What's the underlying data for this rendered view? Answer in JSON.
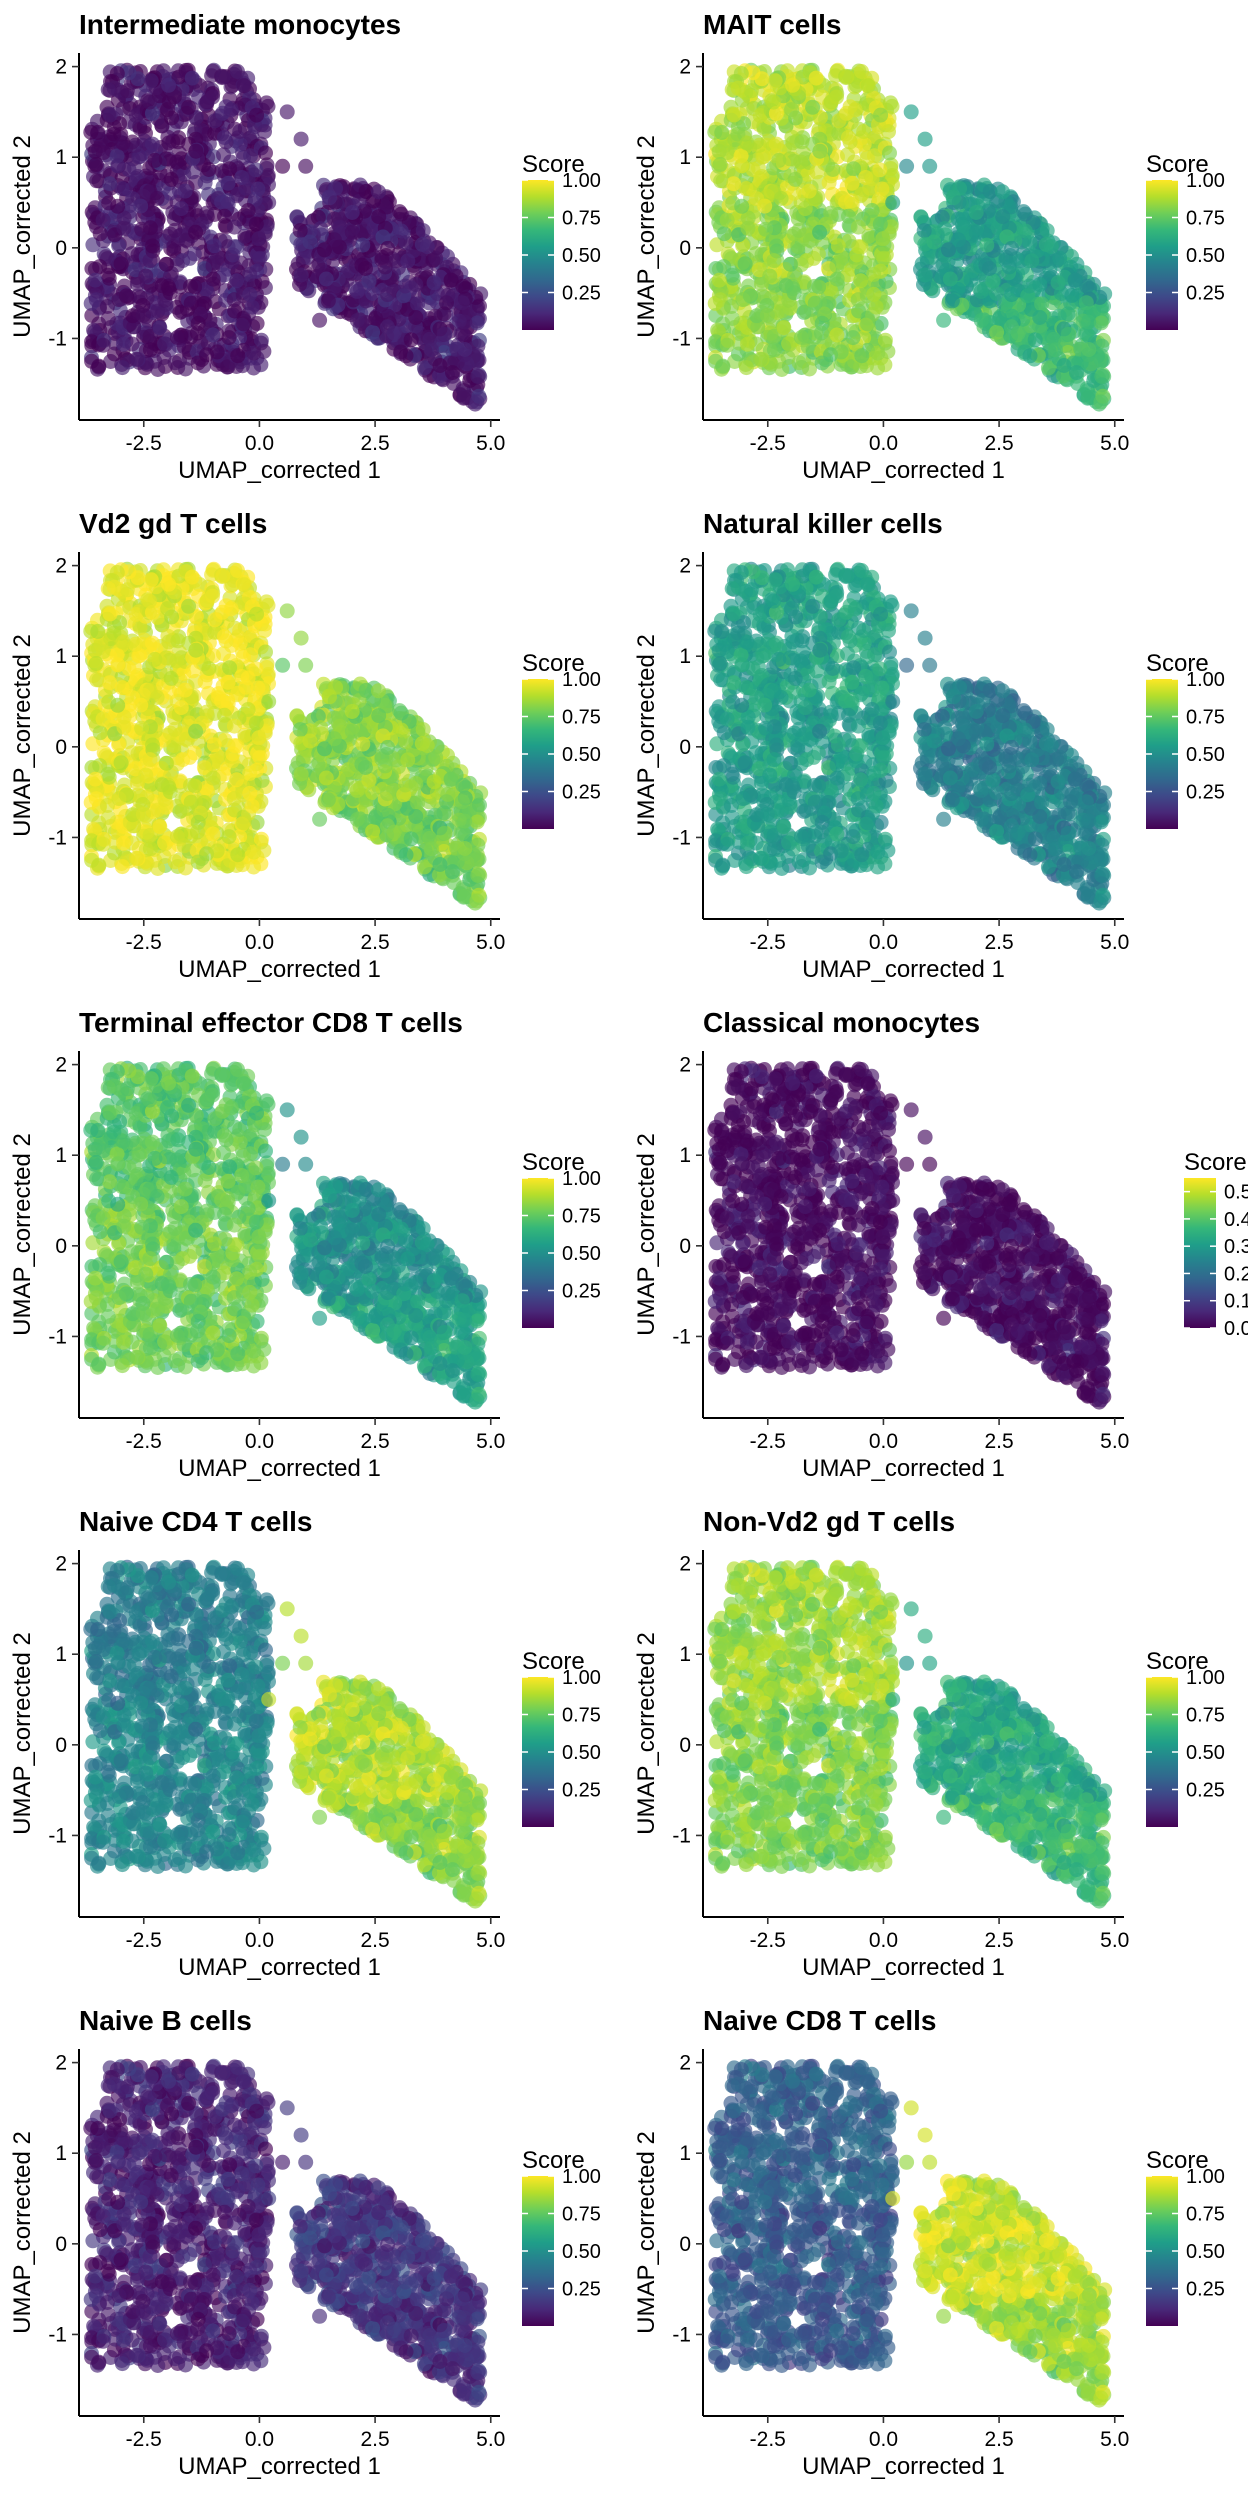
{
  "figure": {
    "xlabel": "UMAP_corrected 1",
    "ylabel": "UMAP_corrected 2",
    "legend_title": "Score",
    "x_ticks": [
      -2.5,
      0.0,
      2.5,
      5.0
    ],
    "x_tick_labels": [
      "-2.5",
      "0.0",
      "2.5",
      "5.0"
    ],
    "y_ticks": [
      -1,
      0,
      1,
      2
    ],
    "y_tick_labels": [
      "-1",
      "0",
      "1",
      "2"
    ],
    "xlim": [
      -3.9,
      5.2
    ],
    "ylim": [
      -1.9,
      2.15
    ],
    "colormap": "viridis",
    "colormap_stops": [
      "#440154",
      "#482878",
      "#3e4989",
      "#31688e",
      "#26828e",
      "#1f9e89",
      "#35b779",
      "#6ece58",
      "#b5de2b",
      "#fde725"
    ],
    "point_alpha": 0.65
  },
  "chart_data": [
    {
      "type": "scatter",
      "title": "Intermediate monocytes",
      "xlabel": "UMAP_corrected 1",
      "ylabel": "UMAP_corrected 2",
      "color_scale": {
        "min": 0.0,
        "max": 1.0,
        "ticks": [
          0.25,
          0.5,
          0.75,
          1.0
        ],
        "tick_labels": [
          "0.25",
          "0.50",
          "0.75",
          "1.00"
        ]
      },
      "score_by_cluster": {
        "left": 0.04,
        "right": 0.05,
        "left_top": 0.05,
        "left_bottom": 0.04,
        "right_top": 0.05,
        "right_bottom": 0.06
      }
    },
    {
      "type": "scatter",
      "title": "MAIT cells",
      "xlabel": "UMAP_corrected 1",
      "ylabel": "UMAP_corrected 2",
      "color_scale": {
        "min": 0.0,
        "max": 1.0,
        "ticks": [
          0.25,
          0.5,
          0.75,
          1.0
        ],
        "tick_labels": [
          "0.25",
          "0.50",
          "0.75",
          "1.00"
        ]
      },
      "score_by_cluster": {
        "left": 0.86,
        "right": 0.62,
        "left_top": 0.9,
        "left_bottom": 0.82,
        "right_top": 0.55,
        "right_bottom": 0.68
      }
    },
    {
      "type": "scatter",
      "title": "Vd2 gd T cells",
      "xlabel": "UMAP_corrected 1",
      "ylabel": "UMAP_corrected 2",
      "color_scale": {
        "min": 0.0,
        "max": 1.0,
        "ticks": [
          0.25,
          0.5,
          0.75,
          1.0
        ],
        "tick_labels": [
          "0.25",
          "0.50",
          "0.75",
          "1.00"
        ]
      },
      "score_by_cluster": {
        "left": 0.96,
        "right": 0.8,
        "left_top": 0.97,
        "left_bottom": 0.95,
        "right_top": 0.82,
        "right_bottom": 0.78
      }
    },
    {
      "type": "scatter",
      "title": "Natural killer cells",
      "xlabel": "UMAP_corrected 1",
      "ylabel": "UMAP_corrected 2",
      "color_scale": {
        "min": 0.0,
        "max": 1.0,
        "ticks": [
          0.25,
          0.5,
          0.75,
          1.0
        ],
        "tick_labels": [
          "0.25",
          "0.50",
          "0.75",
          "1.00"
        ]
      },
      "score_by_cluster": {
        "left": 0.55,
        "right": 0.42,
        "left_top": 0.58,
        "left_bottom": 0.55,
        "right_top": 0.42,
        "right_bottom": 0.45
      }
    },
    {
      "type": "scatter",
      "title": "Terminal effector CD8 T cells",
      "xlabel": "UMAP_corrected 1",
      "ylabel": "UMAP_corrected 2",
      "color_scale": {
        "min": 0.0,
        "max": 1.0,
        "ticks": [
          0.25,
          0.5,
          0.75,
          1.0
        ],
        "tick_labels": [
          "0.25",
          "0.50",
          "0.75",
          "1.00"
        ]
      },
      "score_by_cluster": {
        "left": 0.76,
        "right": 0.55,
        "left_top": 0.74,
        "left_bottom": 0.78,
        "right_top": 0.5,
        "right_bottom": 0.58
      }
    },
    {
      "type": "scatter",
      "title": "Classical monocytes",
      "xlabel": "UMAP_corrected 1",
      "ylabel": "UMAP_corrected 2",
      "color_scale": {
        "min": 0.0,
        "max": 0.55,
        "ticks": [
          0.0,
          0.1,
          0.2,
          0.3,
          0.4,
          0.5
        ],
        "tick_labels": [
          "0.0",
          "0.1",
          "0.2",
          "0.3",
          "0.4",
          "0.5"
        ]
      },
      "score_by_cluster": {
        "left": 0.01,
        "right": 0.01,
        "left_top": 0.01,
        "left_bottom": 0.01,
        "right_top": 0.01,
        "right_bottom": 0.01
      }
    },
    {
      "type": "scatter",
      "title": "Naive CD4 T cells",
      "xlabel": "UMAP_corrected 1",
      "ylabel": "UMAP_corrected 2",
      "color_scale": {
        "min": 0.0,
        "max": 1.0,
        "ticks": [
          0.25,
          0.5,
          0.75,
          1.0
        ],
        "tick_labels": [
          "0.25",
          "0.50",
          "0.75",
          "1.00"
        ]
      },
      "score_by_cluster": {
        "left": 0.45,
        "right": 0.85,
        "left_top": 0.43,
        "left_bottom": 0.46,
        "right_top": 0.88,
        "right_bottom": 0.82
      }
    },
    {
      "type": "scatter",
      "title": "Non-Vd2 gd T cells",
      "xlabel": "UMAP_corrected 1",
      "ylabel": "UMAP_corrected 2",
      "color_scale": {
        "min": 0.0,
        "max": 1.0,
        "ticks": [
          0.25,
          0.5,
          0.75,
          1.0
        ],
        "tick_labels": [
          "0.25",
          "0.50",
          "0.75",
          "1.00"
        ]
      },
      "score_by_cluster": {
        "left": 0.84,
        "right": 0.64,
        "left_top": 0.86,
        "left_bottom": 0.8,
        "right_top": 0.6,
        "right_bottom": 0.68
      }
    },
    {
      "type": "scatter",
      "title": "Naive B cells",
      "xlabel": "UMAP_corrected 1",
      "ylabel": "UMAP_corrected 2",
      "color_scale": {
        "min": 0.0,
        "max": 1.0,
        "ticks": [
          0.25,
          0.5,
          0.75,
          1.0
        ],
        "tick_labels": [
          "0.25",
          "0.50",
          "0.75",
          "1.00"
        ]
      },
      "score_by_cluster": {
        "left": 0.1,
        "right": 0.15,
        "left_top": 0.1,
        "left_bottom": 0.08,
        "right_top": 0.16,
        "right_bottom": 0.14
      }
    },
    {
      "type": "scatter",
      "title": "Naive CD8 T cells",
      "xlabel": "UMAP_corrected 1",
      "ylabel": "UMAP_corrected 2",
      "color_scale": {
        "min": 0.0,
        "max": 1.0,
        "ticks": [
          0.25,
          0.5,
          0.75,
          1.0
        ],
        "tick_labels": [
          "0.25",
          "0.50",
          "0.75",
          "1.00"
        ]
      },
      "score_by_cluster": {
        "left": 0.3,
        "right": 0.9,
        "left_top": 0.32,
        "left_bottom": 0.28,
        "right_top": 0.92,
        "right_bottom": 0.85
      }
    }
  ]
}
